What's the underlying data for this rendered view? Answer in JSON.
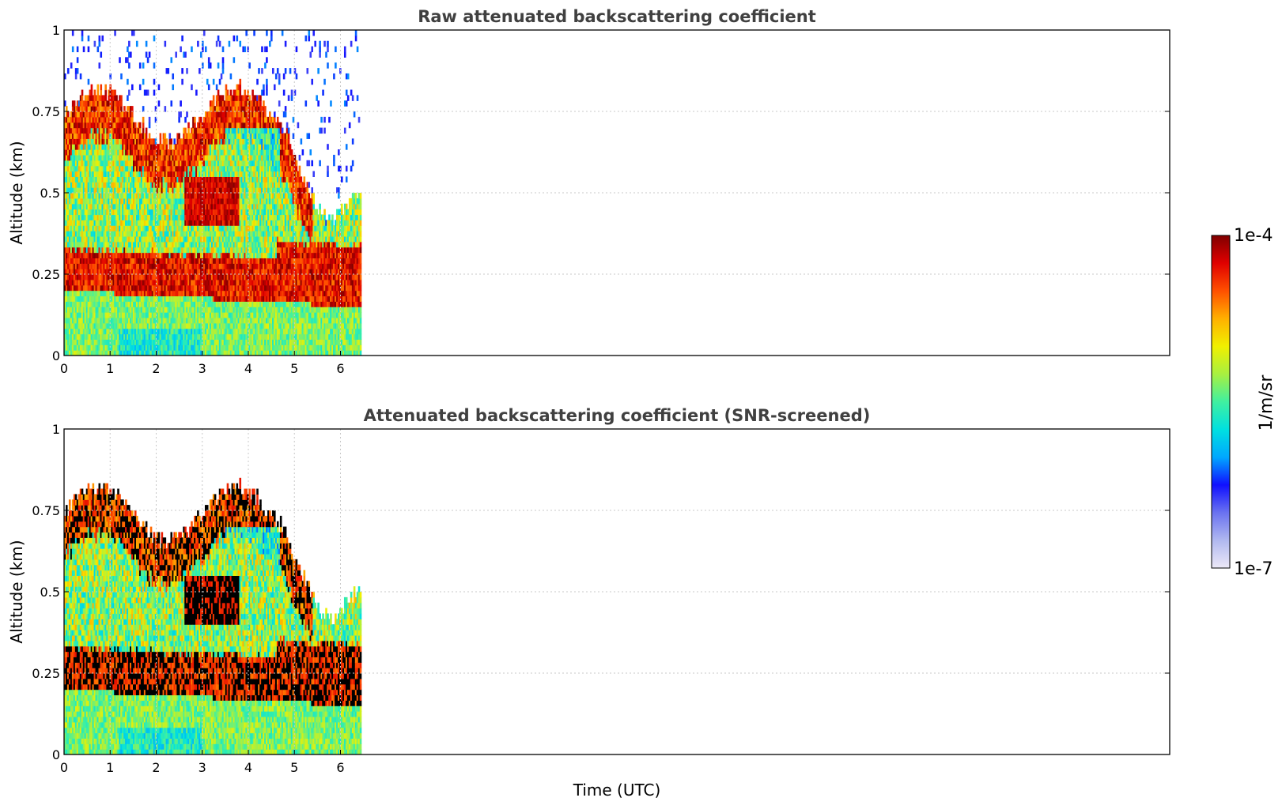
{
  "chart_data": [
    {
      "type": "heatmap",
      "title": "Raw attenuated backscattering coefficient",
      "xlabel": "",
      "ylabel": "Altitude (km)",
      "xlim": [
        0,
        24
      ],
      "ylim": [
        0,
        1
      ],
      "x_ticks": [
        "0",
        "1",
        "2",
        "3",
        "4",
        "5",
        "6"
      ],
      "y_ticks": [
        "0",
        "0.25",
        "0.5",
        "0.75",
        "1"
      ],
      "grid": true,
      "data_extent_hours": [
        0,
        6.45
      ],
      "features": [
        {
          "kind": "cloud-top",
          "altitude_km_range": [
            0.6,
            0.8
          ],
          "time_range_h": [
            0,
            5.5
          ]
        },
        {
          "kind": "boundary-layer",
          "altitude_km_range": [
            0.2,
            0.35
          ],
          "time_range_h": [
            0,
            6.45
          ]
        }
      ]
    },
    {
      "type": "heatmap",
      "title": "Attenuated backscattering coefficient (SNR-screened)",
      "xlabel": "Time (UTC)",
      "ylabel": "Altitude (km)",
      "xlim": [
        0,
        24
      ],
      "ylim": [
        0,
        1
      ],
      "x_ticks": [
        "0",
        "1",
        "2",
        "3",
        "4",
        "5",
        "6"
      ],
      "y_ticks": [
        "0",
        "0.25",
        "0.5",
        "0.75",
        "1"
      ],
      "grid": true,
      "data_extent_hours": [
        0,
        6.45
      ],
      "features": [
        {
          "kind": "saturated",
          "altitude_km_range": [
            0.6,
            0.8
          ],
          "time_range_h": [
            0,
            4.8
          ]
        },
        {
          "kind": "saturated",
          "altitude_km_range": [
            0.2,
            0.35
          ],
          "time_range_h": [
            0,
            6.45
          ]
        }
      ]
    }
  ],
  "colorbar": {
    "label": "1/m/sr",
    "min_label": "1e-7",
    "max_label": "1e-4",
    "scale": "log",
    "colormap": [
      "#ece8f6",
      "#b0b8f0",
      "#6a72f0",
      "#1010ff",
      "#00a8ff",
      "#00e0e0",
      "#40f0a0",
      "#a8f040",
      "#f0f000",
      "#ffb000",
      "#ff5000",
      "#e00000",
      "#800000"
    ]
  }
}
